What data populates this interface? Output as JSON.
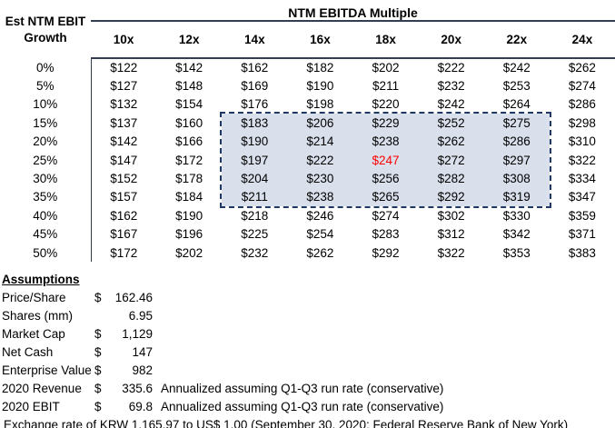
{
  "colors": {
    "line": "#333F50",
    "highlight_fill": "#D9DFEB",
    "highlight_border": "#1F3864",
    "special_value_color": "#FF0000"
  },
  "table": {
    "title": "NTM EBITDA Multiple",
    "row_axis_label": "Est NTM EBIT Growth",
    "col_headers": [
      "10x",
      "12x",
      "14x",
      "16x",
      "18x",
      "20x",
      "22x",
      "24x"
    ],
    "rows": [
      {
        "growth": "0%",
        "values": [
          "$122",
          "$142",
          "$162",
          "$182",
          "$202",
          "$222",
          "$242",
          "$262"
        ]
      },
      {
        "growth": "5%",
        "values": [
          "$127",
          "$148",
          "$169",
          "$190",
          "$211",
          "$232",
          "$253",
          "$274"
        ]
      },
      {
        "growth": "10%",
        "values": [
          "$132",
          "$154",
          "$176",
          "$198",
          "$220",
          "$242",
          "$264",
          "$286"
        ]
      },
      {
        "growth": "15%",
        "values": [
          "$137",
          "$160",
          "$183",
          "$206",
          "$229",
          "$252",
          "$275",
          "$298"
        ]
      },
      {
        "growth": "20%",
        "values": [
          "$142",
          "$166",
          "$190",
          "$214",
          "$238",
          "$262",
          "$286",
          "$310"
        ]
      },
      {
        "growth": "25%",
        "values": [
          "$147",
          "$172",
          "$197",
          "$222",
          "$247",
          "$272",
          "$297",
          "$322"
        ]
      },
      {
        "growth": "30%",
        "values": [
          "$152",
          "$178",
          "$204",
          "$230",
          "$256",
          "$282",
          "$308",
          "$334"
        ]
      },
      {
        "growth": "35%",
        "values": [
          "$157",
          "$184",
          "$211",
          "$238",
          "$265",
          "$292",
          "$319",
          "$347"
        ]
      },
      {
        "growth": "40%",
        "values": [
          "$162",
          "$190",
          "$218",
          "$246",
          "$274",
          "$302",
          "$330",
          "$359"
        ]
      },
      {
        "growth": "45%",
        "values": [
          "$167",
          "$196",
          "$225",
          "$254",
          "$283",
          "$312",
          "$342",
          "$371"
        ]
      },
      {
        "growth": "50%",
        "values": [
          "$172",
          "$202",
          "$232",
          "$262",
          "$292",
          "$322",
          "$353",
          "$383"
        ]
      }
    ],
    "highlight": {
      "row_start_idx": 3,
      "row_end_idx": 7,
      "col_start_idx": 2,
      "col_end_idx": 6
    },
    "special_cell": {
      "row_idx": 5,
      "col_idx": 4,
      "value": "$247"
    }
  },
  "assumptions": {
    "heading": "Assumptions",
    "items": [
      {
        "label": "Price/Share",
        "currency": "$",
        "value": "162.46",
        "note": ""
      },
      {
        "label": "Shares (mm)",
        "currency": "",
        "value": "6.95",
        "note": ""
      },
      {
        "label": "Market Cap",
        "currency": "$",
        "value": "1,129",
        "note": ""
      },
      {
        "label": "Net Cash",
        "currency": "$",
        "value": "147",
        "note": ""
      },
      {
        "label": "Enterprise Value",
        "currency": "$",
        "value": "982",
        "note": ""
      },
      {
        "label": "2020 Revenue",
        "currency": "$",
        "value": "335.6",
        "note": "Annualized assuming Q1-Q3 run rate (conservative)"
      },
      {
        "label": "2020 EBIT",
        "currency": "$",
        "value": "69.8",
        "note": "Annualized assuming Q1-Q3 run rate (conservative)"
      }
    ],
    "footnote": "Exchange rate of KRW 1,165.97 to US$ 1.00 (September 30, 2020; Federal Reserve Bank of New York)"
  }
}
